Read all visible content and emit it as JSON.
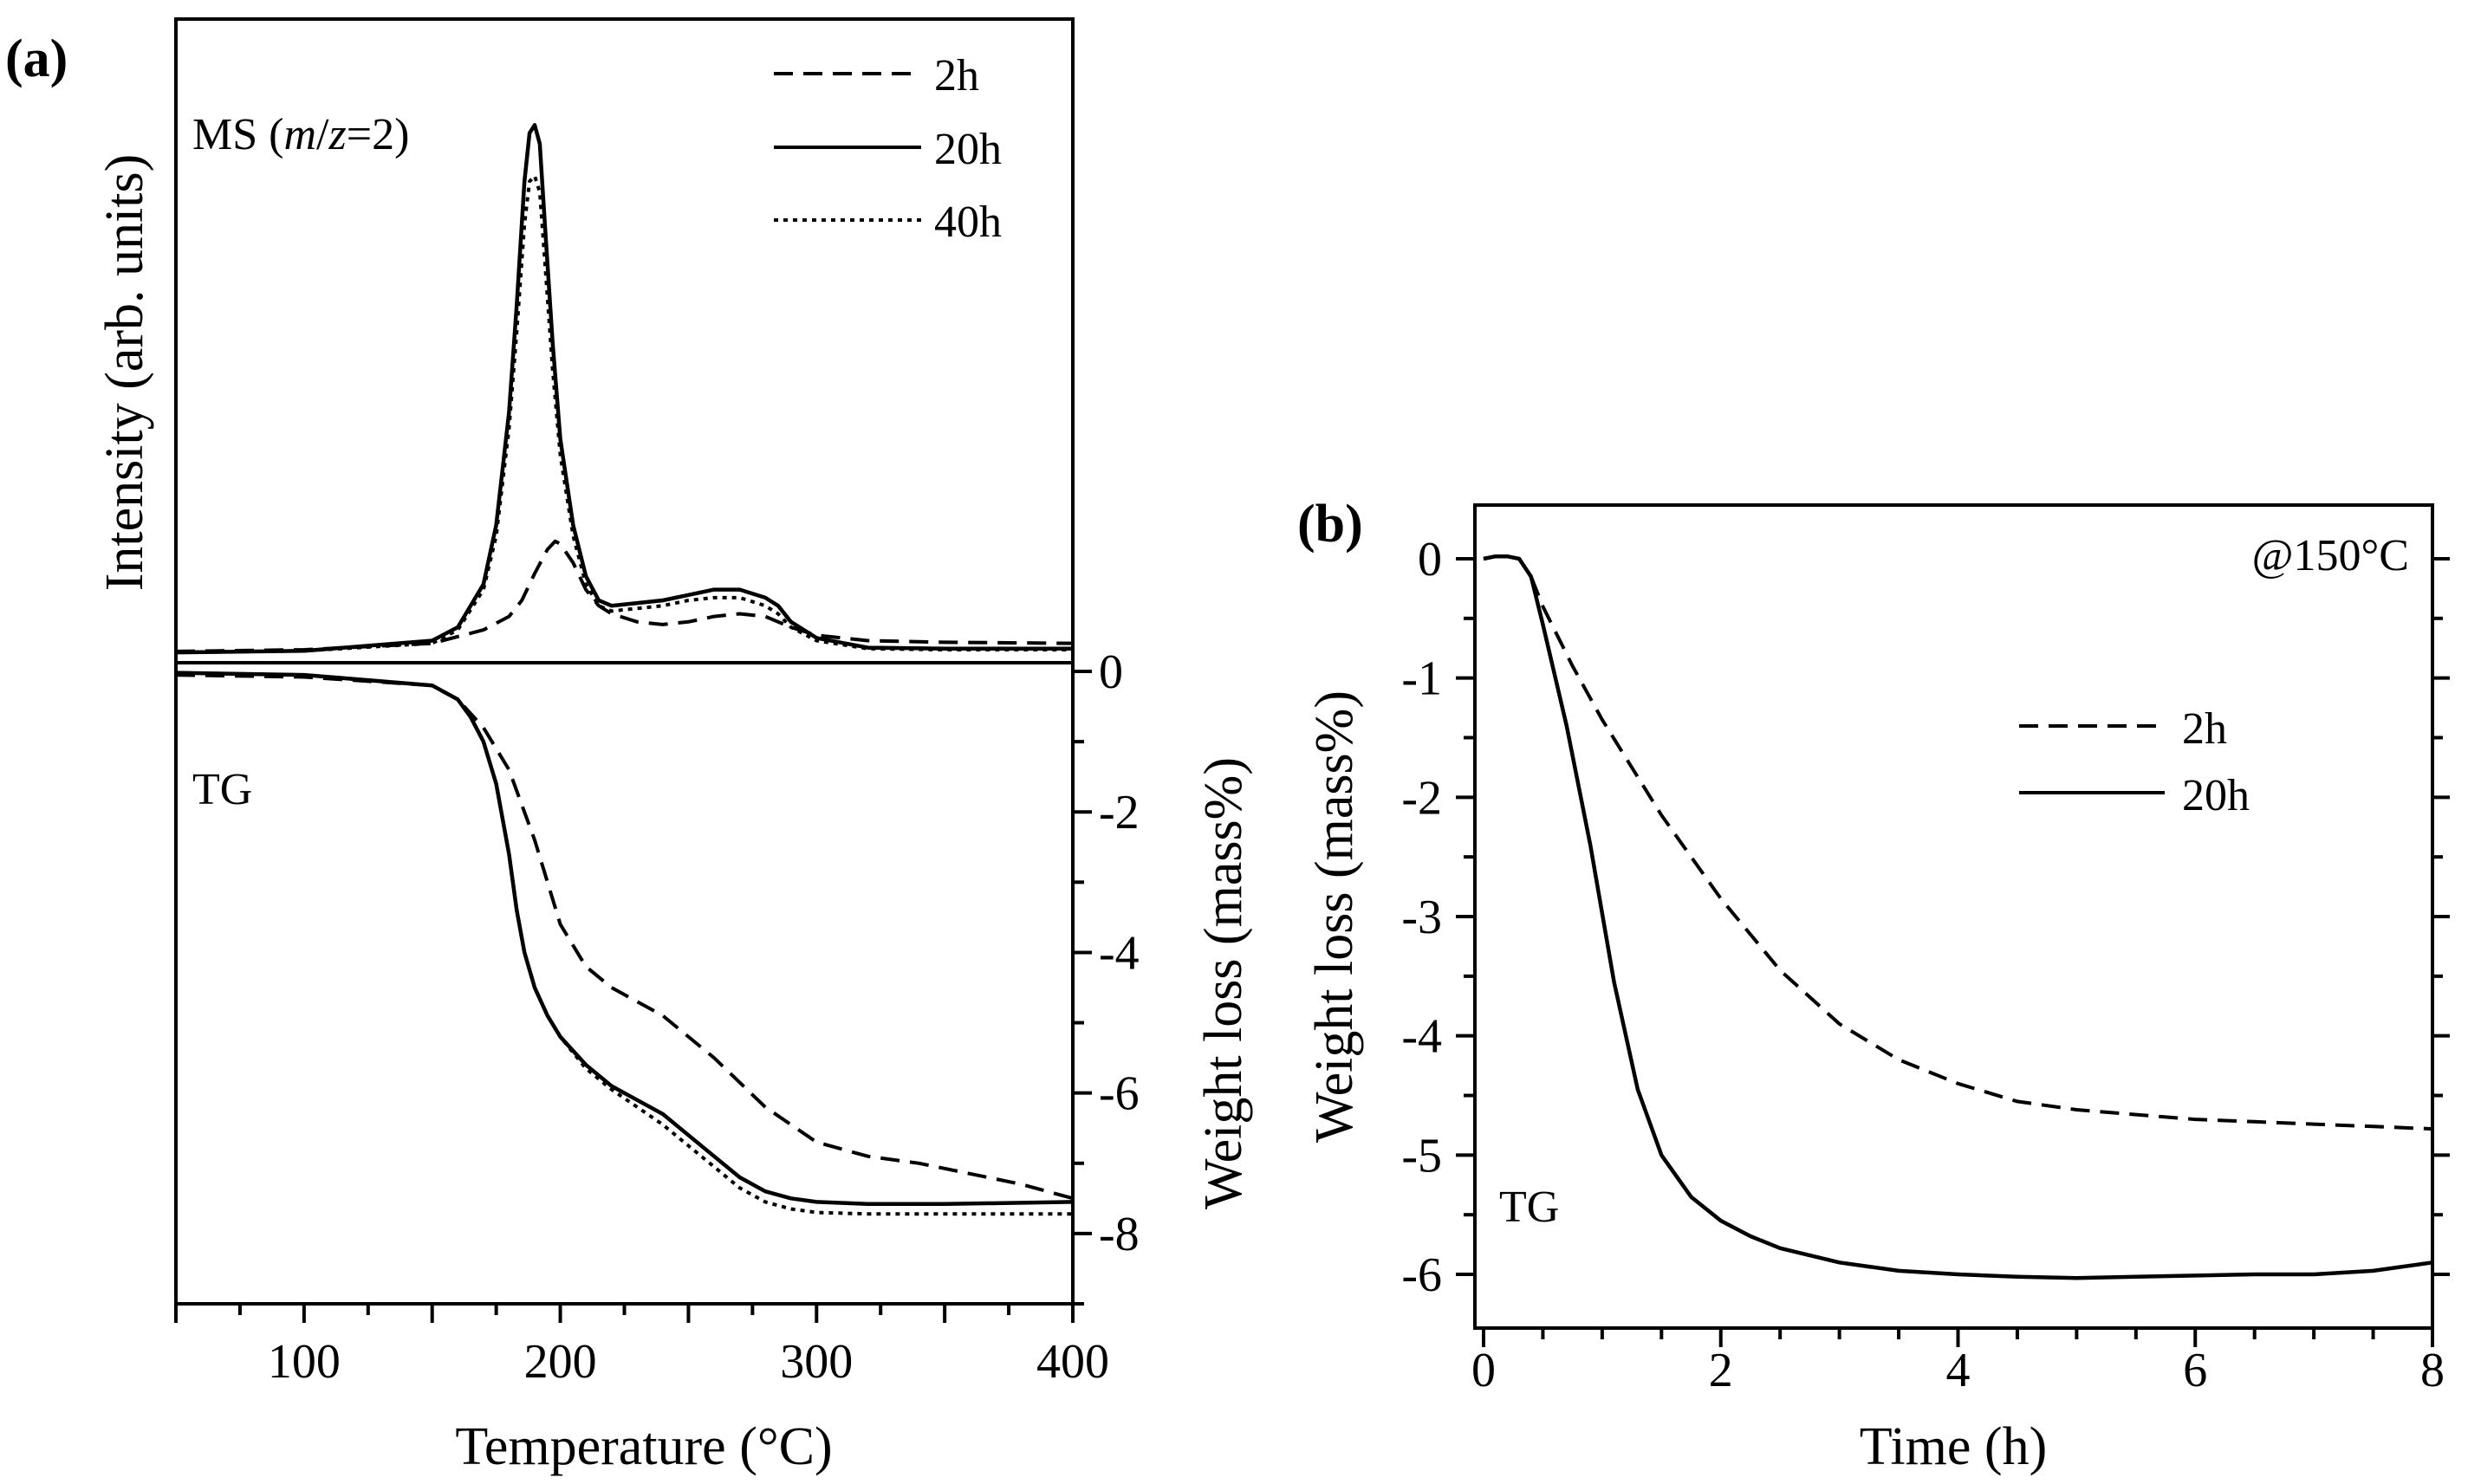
{
  "panels": {
    "a": {
      "label": "(a)"
    },
    "b": {
      "label": "(b)"
    }
  },
  "chart_data": [
    {
      "id": "a-ms",
      "type": "line",
      "title": "MS (m/z=2)",
      "title_parts": [
        "MS (",
        "m",
        "/",
        "z",
        "=2)"
      ],
      "xlabel": "Temperature (°C)",
      "ylabel": "Intensity (arb. units)",
      "xlim": [
        50,
        400
      ],
      "ylim": [
        0,
        1
      ],
      "yticks_shown": false,
      "legend": {
        "position": "top-right",
        "entries": [
          "2h",
          "20h",
          "40h"
        ]
      },
      "series": [
        {
          "name": "2h",
          "style": "dashed",
          "x": [
            50,
            100,
            150,
            170,
            180,
            185,
            190,
            195,
            198,
            200,
            205,
            210,
            215,
            220,
            230,
            240,
            250,
            260,
            270,
            280,
            290,
            300,
            320,
            350,
            400
          ],
          "y": [
            0.005,
            0.008,
            0.02,
            0.045,
            0.07,
            0.1,
            0.15,
            0.195,
            0.21,
            0.205,
            0.17,
            0.12,
            0.09,
            0.075,
            0.06,
            0.055,
            0.06,
            0.07,
            0.075,
            0.07,
            0.05,
            0.035,
            0.025,
            0.022,
            0.02
          ]
        },
        {
          "name": "20h",
          "style": "solid",
          "x": [
            50,
            100,
            150,
            160,
            170,
            175,
            180,
            183,
            186,
            188,
            190,
            192,
            194,
            197,
            200,
            205,
            210,
            215,
            220,
            230,
            240,
            250,
            260,
            270,
            280,
            285,
            290,
            300,
            320,
            350,
            400
          ],
          "y": [
            0.003,
            0.006,
            0.025,
            0.05,
            0.13,
            0.24,
            0.45,
            0.65,
            0.88,
            0.97,
            0.985,
            0.95,
            0.8,
            0.58,
            0.4,
            0.24,
            0.145,
            0.1,
            0.09,
            0.095,
            0.1,
            0.11,
            0.12,
            0.12,
            0.105,
            0.09,
            0.06,
            0.03,
            0.012,
            0.01,
            0.01
          ]
        },
        {
          "name": "40h",
          "style": "dotted",
          "x": [
            50,
            100,
            150,
            160,
            170,
            175,
            180,
            183,
            186,
            188,
            190,
            192,
            194,
            197,
            200,
            205,
            210,
            215,
            220,
            230,
            240,
            250,
            260,
            270,
            280,
            285,
            290,
            300,
            320,
            350,
            400
          ],
          "y": [
            0.003,
            0.006,
            0.02,
            0.045,
            0.12,
            0.22,
            0.42,
            0.6,
            0.8,
            0.88,
            0.89,
            0.86,
            0.73,
            0.53,
            0.37,
            0.22,
            0.13,
            0.09,
            0.08,
            0.085,
            0.09,
            0.1,
            0.105,
            0.105,
            0.09,
            0.075,
            0.05,
            0.025,
            0.01,
            0.008,
            0.008
          ]
        }
      ]
    },
    {
      "id": "a-tg",
      "type": "line",
      "title": "TG",
      "xlabel": "Temperature (°C)",
      "ylabel": "Weight loss (mass%)",
      "xlim": [
        50,
        400
      ],
      "ylim": [
        -9,
        0
      ],
      "xticks": [
        100,
        200,
        300,
        400
      ],
      "yticks": [
        0,
        -2,
        -4,
        -6,
        -8
      ],
      "series": [
        {
          "name": "2h",
          "style": "dashed",
          "x": [
            50,
            100,
            150,
            160,
            170,
            180,
            190,
            195,
            200,
            210,
            220,
            240,
            260,
            280,
            300,
            320,
            340,
            360,
            380,
            400
          ],
          "y": [
            -0.05,
            -0.08,
            -0.2,
            -0.4,
            -0.8,
            -1.4,
            -2.4,
            -3.0,
            -3.6,
            -4.2,
            -4.5,
            -4.9,
            -5.5,
            -6.2,
            -6.7,
            -6.9,
            -7.0,
            -7.15,
            -7.3,
            -7.5
          ]
        },
        {
          "name": "20h",
          "style": "solid",
          "x": [
            50,
            100,
            150,
            160,
            165,
            170,
            175,
            180,
            183,
            186,
            190,
            195,
            200,
            210,
            220,
            230,
            240,
            250,
            260,
            270,
            280,
            290,
            300,
            320,
            350,
            400
          ],
          "y": [
            -0.02,
            -0.05,
            -0.2,
            -0.4,
            -0.65,
            -1.0,
            -1.6,
            -2.6,
            -3.4,
            -4.0,
            -4.5,
            -4.9,
            -5.2,
            -5.6,
            -5.9,
            -6.1,
            -6.3,
            -6.6,
            -6.9,
            -7.2,
            -7.4,
            -7.5,
            -7.55,
            -7.58,
            -7.58,
            -7.55
          ]
        },
        {
          "name": "40h",
          "style": "dotted",
          "x": [
            50,
            100,
            150,
            160,
            165,
            170,
            175,
            180,
            183,
            186,
            190,
            195,
            200,
            210,
            220,
            230,
            240,
            250,
            260,
            270,
            280,
            290,
            300,
            320,
            350,
            400
          ],
          "y": [
            -0.02,
            -0.05,
            -0.2,
            -0.4,
            -0.65,
            -1.0,
            -1.6,
            -2.6,
            -3.4,
            -4.0,
            -4.5,
            -4.9,
            -5.2,
            -5.65,
            -5.95,
            -6.2,
            -6.45,
            -6.75,
            -7.05,
            -7.35,
            -7.55,
            -7.65,
            -7.7,
            -7.72,
            -7.72,
            -7.72
          ]
        }
      ]
    },
    {
      "id": "b-tg",
      "type": "line",
      "title": "TG",
      "annotation": "@150°C",
      "xlabel": "Time (h)",
      "ylabel": "Weight loss (mass%)",
      "xlim": [
        0,
        8
      ],
      "ylim": [
        -6.45,
        0.45
      ],
      "xticks": [
        0,
        2,
        4,
        6,
        8
      ],
      "yticks": [
        0,
        -1,
        -2,
        -3,
        -4,
        -5,
        -6
      ],
      "legend": {
        "position": "center-right",
        "entries": [
          "2h",
          "20h"
        ]
      },
      "series": [
        {
          "name": "2h",
          "style": "dashed",
          "x": [
            0,
            0.1,
            0.2,
            0.3,
            0.4,
            0.5,
            0.75,
            1.0,
            1.5,
            2.0,
            2.5,
            3.0,
            3.5,
            4.0,
            4.5,
            5.0,
            5.5,
            6.0,
            6.5,
            7.0,
            7.5,
            8.0
          ],
          "y": [
            0,
            0.02,
            0.02,
            0,
            -0.15,
            -0.4,
            -0.9,
            -1.35,
            -2.15,
            -2.85,
            -3.45,
            -3.9,
            -4.2,
            -4.4,
            -4.55,
            -4.62,
            -4.66,
            -4.7,
            -4.72,
            -4.74,
            -4.76,
            -4.78
          ]
        },
        {
          "name": "20h",
          "style": "solid",
          "x": [
            0,
            0.1,
            0.2,
            0.3,
            0.4,
            0.5,
            0.7,
            0.9,
            1.1,
            1.3,
            1.5,
            1.75,
            2.0,
            2.25,
            2.5,
            3.0,
            3.5,
            4.0,
            4.5,
            5.0,
            5.5,
            6.0,
            6.5,
            7.0,
            7.5,
            8.0
          ],
          "y": [
            0,
            0.02,
            0.02,
            0,
            -0.15,
            -0.55,
            -1.4,
            -2.4,
            -3.55,
            -4.45,
            -5.0,
            -5.35,
            -5.55,
            -5.68,
            -5.78,
            -5.9,
            -5.97,
            -6.0,
            -6.02,
            -6.03,
            -6.02,
            -6.01,
            -6.0,
            -6.0,
            -5.97,
            -5.9
          ]
        }
      ]
    }
  ]
}
